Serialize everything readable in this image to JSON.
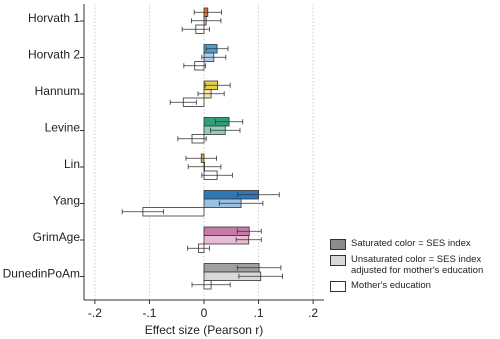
{
  "chart_data": {
    "type": "bar",
    "orientation": "horizontal",
    "x_label": "Effect size (Pearson r)",
    "categories": [
      "Horvath 1",
      "Horvath 2",
      "Hannum",
      "Levine",
      "Lin",
      "Yang",
      "GrimAge",
      "DunedinPoAm"
    ],
    "series": [
      {
        "name": "Saturated color = SES index",
        "color": "#8c8c8c",
        "colors": [
          "#e2703a",
          "#4a9fd8",
          "#e6d04a",
          "#2ea07a",
          "#f0b040",
          "#2e78b8",
          "#c87aa8",
          "#a0a0a0"
        ],
        "values": [
          0.007,
          0.024,
          0.025,
          0.046,
          -0.005,
          0.1,
          0.083,
          0.101
        ],
        "errors": [
          0.025,
          0.02,
          0.023,
          0.025,
          0.028,
          0.038,
          0.022,
          0.04
        ]
      },
      {
        "name": "Unsaturated color = SES index adjusted for mother's education",
        "color": "#d9d9d9",
        "colors": [
          "#f3b799",
          "#a8d0ee",
          "#f3e8a8",
          "#8fd0b5",
          "#f8d8a0",
          "#9cc2e2",
          "#e8bcd5",
          "#d9d9d9"
        ],
        "values": [
          0.004,
          0.018,
          0.013,
          0.039,
          0.001,
          0.068,
          0.082,
          0.104
        ],
        "errors": [
          0.027,
          0.022,
          0.024,
          0.027,
          0.03,
          0.04,
          0.023,
          0.04
        ]
      },
      {
        "name": "Mother's education",
        "color": "#ffffff",
        "colors": [
          "#ffffff",
          "#ffffff",
          "#ffffff",
          "#ffffff",
          "#ffffff",
          "#ffffff",
          "#ffffff",
          "#ffffff"
        ],
        "values": [
          -0.015,
          -0.017,
          -0.038,
          -0.022,
          0.024,
          -0.112,
          -0.01,
          0.013
        ],
        "errors": [
          0.025,
          0.02,
          0.024,
          0.026,
          0.028,
          0.038,
          0.02,
          0.035
        ]
      }
    ],
    "xlim": [
      -0.22,
      0.22
    ],
    "xticks": [
      {
        "value": -0.2,
        "label": "-.2"
      },
      {
        "value": -0.1,
        "label": "-.1"
      },
      {
        "value": 0,
        "label": "0"
      },
      {
        "value": 0.1,
        "label": ".1"
      },
      {
        "value": 0.2,
        "label": ".2"
      }
    ],
    "grid": true,
    "legend": "lower right"
  }
}
